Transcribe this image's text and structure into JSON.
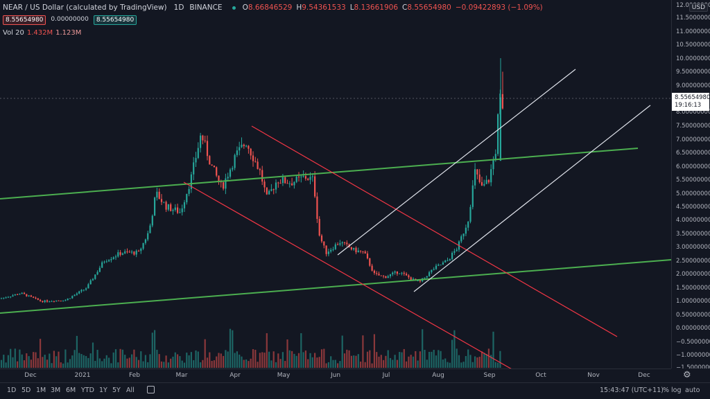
{
  "header": {
    "symbol": "NEAR / US Dollar (calculated by TradingView)",
    "interval": "1D",
    "exchange": "BINANCE",
    "open_label": "O",
    "open": "8.66846529",
    "high_label": "H",
    "high": "9.54361533",
    "low_label": "L",
    "low": "8.13661906",
    "close_label": "C",
    "close": "8.55654980",
    "change": "−0.09422893 (−1.09%)",
    "badge_sell": "8.55654980",
    "badge_spread": "0.00000000",
    "badge_buy": "8.55654980",
    "volume_label": "Vol 20",
    "volume_value": "1.432M",
    "volume_ma": "1.123M"
  },
  "price_axis": {
    "currency": "USD",
    "ticks": [
      "12.00000000",
      "11.50000000",
      "11.00000000",
      "10.50000000",
      "10.00000000",
      "9.50000000",
      "9.00000000",
      "8.00000000",
      "7.50000000",
      "7.00000000",
      "6.50000000",
      "6.00000000",
      "5.50000000",
      "5.00000000",
      "4.50000000",
      "4.00000000",
      "3.50000000",
      "3.00000000",
      "2.50000000",
      "2.00000000",
      "1.50000000",
      "1.00000000",
      "0.50000000",
      "0.00000000",
      "−0.50000000",
      "−1.00000000",
      "−1.50000000"
    ],
    "last_price": "8.55654980",
    "countdown": "19:16:13"
  },
  "time_axis": {
    "labels": [
      "Dec",
      "2021",
      "Feb",
      "Mar",
      "Apr",
      "May",
      "Jun",
      "Jul",
      "Aug",
      "Sep",
      "Oct",
      "Nov",
      "Dec"
    ]
  },
  "bottom_bar": {
    "ranges": [
      "1D",
      "5D",
      "1M",
      "3M",
      "6M",
      "YTD",
      "1Y",
      "5Y",
      "All"
    ],
    "clock": "15:43:47 (UTC+11)",
    "opt_percent": "%",
    "opt_log": "log",
    "opt_auto": "auto"
  },
  "colors": {
    "up": "#26a69a",
    "down": "#ef5350",
    "trend_green": "#4caf50",
    "trend_red": "#f23645",
    "trend_white": "#e0e3eb"
  },
  "chart_data": {
    "type": "candlestick",
    "ylim": [
      -1.6,
      12.3
    ],
    "anchors_ohlc_close_by_month": [
      {
        "date": "2020-12",
        "close": 1.2
      },
      {
        "date": "2021-01",
        "close": 1.0
      },
      {
        "date": "2021-02",
        "close": 3.5
      },
      {
        "date": "2021-03",
        "close": 6.0
      },
      {
        "date": "2021-04",
        "close": 5.5
      },
      {
        "date": "2021-05",
        "close": 5.3
      },
      {
        "date": "2021-06",
        "close": 3.0
      },
      {
        "date": "2021-07",
        "close": 1.8
      },
      {
        "date": "2021-08",
        "close": 2.5
      },
      {
        "date": "2021-09",
        "close": 8.56
      }
    ]
  }
}
